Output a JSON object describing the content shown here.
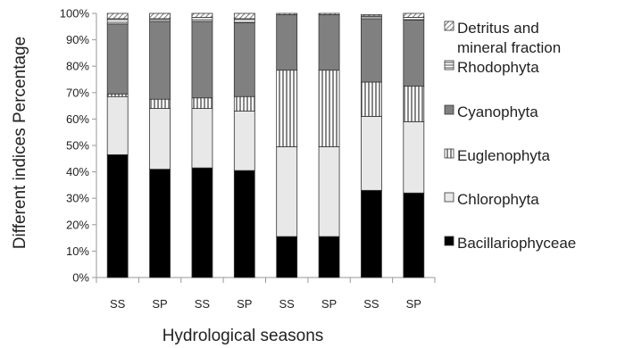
{
  "chart_data": {
    "type": "bar",
    "stacked": true,
    "percent": true,
    "xlabel": "Hydrological seasons",
    "ylabel": "Different indices Percentage",
    "ylim": [
      0,
      100
    ],
    "yticks": [
      "0%",
      "10%",
      "20%",
      "30%",
      "40%",
      "50%",
      "60%",
      "70%",
      "80%",
      "90%",
      "100%"
    ],
    "categories": [
      "SS",
      "SP",
      "SS",
      "SP",
      "SS",
      "SP",
      "SS",
      "SP"
    ],
    "grid": false,
    "legend_position": "right",
    "series": [
      {
        "name": "Bacillariophyceae",
        "color": "#000000",
        "pattern": "solid",
        "values": [
          46.5,
          41,
          41.5,
          40.5,
          15.5,
          15.5,
          33,
          32
        ]
      },
      {
        "name": "Chlorophyta",
        "color": "#e8e8e8",
        "pattern": "solid",
        "values": [
          22,
          23,
          22.5,
          22.5,
          34,
          34,
          28,
          27
        ]
      },
      {
        "name": "Euglenophyta",
        "color": "#9a9a9a",
        "pattern": "vertical-lines",
        "values": [
          1,
          3.5,
          4,
          5.5,
          29,
          29,
          13,
          13.5
        ]
      },
      {
        "name": "Cyanophyta",
        "color": "#808080",
        "pattern": "solid",
        "values": [
          26.5,
          29.5,
          29,
          28,
          21,
          21,
          24,
          25
        ]
      },
      {
        "name": "Rhodophyta",
        "color": "#b0b0b0",
        "pattern": "horizontal-lines",
        "values": [
          2,
          1,
          1.5,
          1.5,
          0,
          0,
          1,
          1
        ]
      },
      {
        "name": "Detritus and\nmineral fraction",
        "color": "#c8c8c8",
        "pattern": "diagonal-lines",
        "values": [
          2,
          2,
          1.5,
          2,
          0.5,
          0.5,
          0.5,
          1.5
        ]
      }
    ]
  }
}
